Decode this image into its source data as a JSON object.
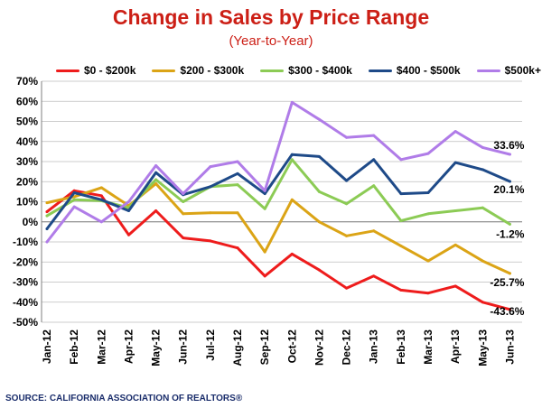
{
  "header": {
    "title": "Change in Sales by Price Range",
    "subtitle": "(Year-to-Year)"
  },
  "footer": {
    "source": "SOURCE: CALIFORNIA ASSOCIATION OF REALTORS®"
  },
  "chart_data": {
    "type": "line",
    "title": "Change in Sales by Price Range",
    "subtitle": "(Year-to-Year)",
    "categories": [
      "Jan-12",
      "Feb-12",
      "Mar-12",
      "Apr-12",
      "May-12",
      "Jun-12",
      "Jul-12",
      "Aug-12",
      "Sep-12",
      "Oct-12",
      "Nov-12",
      "Dec-12",
      "Jan-13",
      "Feb-13",
      "Mar-13",
      "Apr-13",
      "May-13",
      "Jun-13"
    ],
    "ylim": [
      -50,
      70
    ],
    "yticks": [
      -50,
      -40,
      -30,
      -20,
      -10,
      0,
      10,
      20,
      30,
      40,
      50,
      60,
      70
    ],
    "ytick_labels": [
      "-50%",
      "-40%",
      "-30%",
      "-20%",
      "-10%",
      "0%",
      "10%",
      "20%",
      "30%",
      "40%",
      "50%",
      "60%",
      "70%"
    ],
    "grid": "horizontal",
    "legend_position": "top",
    "series": [
      {
        "name": "$0 - $200k",
        "color": "#ee1c1c",
        "end_label": "-43.6%",
        "values": [
          5,
          15.5,
          13,
          -6.5,
          5.5,
          -8,
          -9.5,
          -13,
          -27,
          -16,
          -24,
          -33,
          -27,
          -34,
          -35.5,
          -32,
          -40,
          -43.6
        ]
      },
      {
        "name": "$200 - $300k",
        "color": "#dba416",
        "end_label": "-25.7%",
        "values": [
          9.5,
          12.5,
          17,
          8,
          19,
          4,
          4.5,
          4.5,
          -15,
          11,
          0,
          -7,
          -4.5,
          -12,
          -19.5,
          -11.5,
          -19.5,
          -25.7
        ]
      },
      {
        "name": "$300 - $400k",
        "color": "#8ccb55",
        "end_label": "-1.2%",
        "values": [
          3,
          11,
          10.5,
          7,
          21,
          10,
          17.5,
          18.5,
          6.5,
          31,
          15,
          9,
          18,
          0.5,
          4,
          5.5,
          7,
          -1.2
        ]
      },
      {
        "name": "$400 - $500k",
        "color": "#1e4a88",
        "end_label": "20.1%",
        "values": [
          -3.5,
          14.5,
          11,
          5.5,
          24.5,
          13.5,
          17.5,
          24,
          14,
          33.5,
          32.5,
          20.5,
          31,
          14,
          14.5,
          29.5,
          26,
          20.1
        ]
      },
      {
        "name": "$500k+",
        "color": "#b07ce8",
        "end_label": "33.6%",
        "values": [
          -10,
          7.5,
          0,
          10,
          28,
          14,
          27.5,
          30,
          15.5,
          59.5,
          51,
          42,
          43,
          31,
          34,
          45,
          37,
          33.6
        ]
      }
    ]
  }
}
